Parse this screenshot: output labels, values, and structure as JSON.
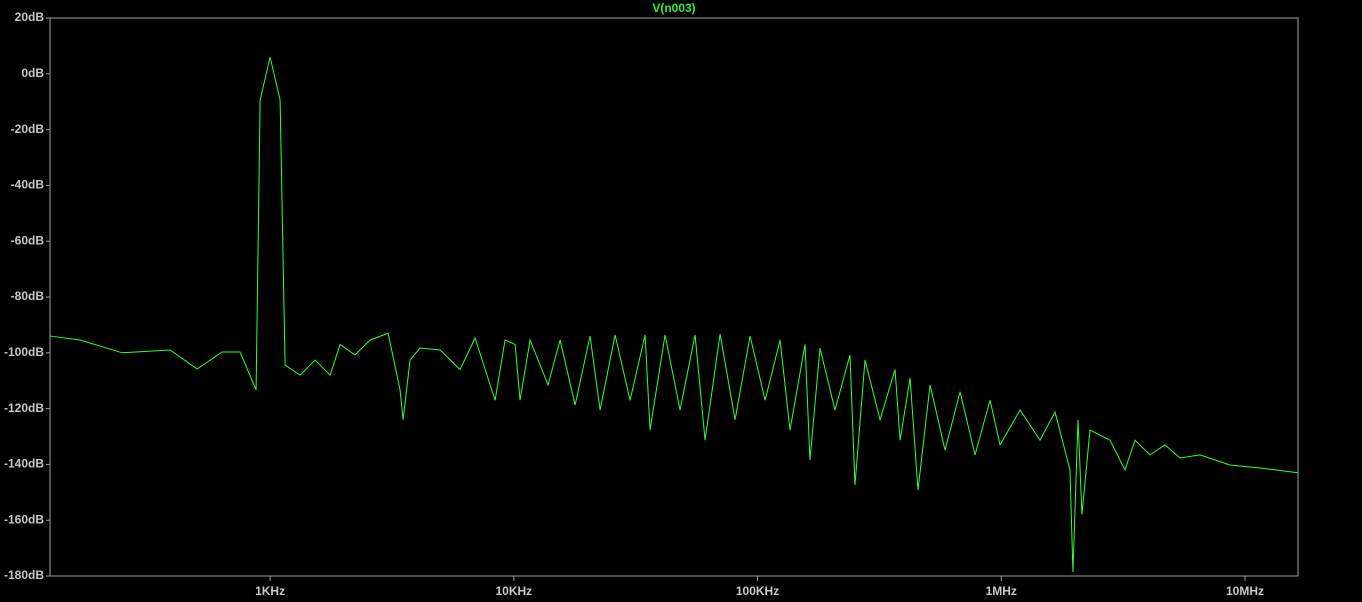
{
  "chart_data": {
    "type": "line",
    "title": "V(n003)",
    "title_color": "#33ee33",
    "log_x": true,
    "grid": false,
    "xlim": [
      125,
      16500000
    ],
    "xticks": [
      {
        "value": 1000,
        "label": "1KHz"
      },
      {
        "value": 10000,
        "label": "10KHz"
      },
      {
        "value": 100000,
        "label": "100KHz"
      },
      {
        "value": 1000000,
        "label": "1MHz"
      },
      {
        "value": 10000000,
        "label": "10MHz"
      }
    ],
    "ylim": [
      -180,
      20
    ],
    "yticks": [
      {
        "value": 20,
        "label": "20dB"
      },
      {
        "value": 0,
        "label": "0dB"
      },
      {
        "value": -20,
        "label": "-20dB"
      },
      {
        "value": -40,
        "label": "-40dB"
      },
      {
        "value": -60,
        "label": "-60dB"
      },
      {
        "value": -80,
        "label": "-80dB"
      },
      {
        "value": -100,
        "label": "-100dB"
      },
      {
        "value": -120,
        "label": "-120dB"
      },
      {
        "value": -140,
        "label": "-140dB"
      },
      {
        "value": -160,
        "label": "-160dB"
      },
      {
        "value": -180,
        "label": "-180dB"
      }
    ],
    "x": [
      125,
      166,
      247,
      389,
      502,
      635,
      753,
      876,
      910,
      1000,
      1099,
      1152,
      1328,
      1530,
      1763,
      1937,
      2232,
      2572,
      3049,
      3414,
      3513,
      3751,
      4122,
      4981,
      6019,
      6934,
      8377,
      9208,
      10120,
      10606,
      11660,
      13820,
      15480,
      17840,
      20550,
      22590,
      26030,
      29990,
      34560,
      36220,
      41740,
      48090,
      55410,
      60910,
      70190,
      80870,
      93180,
      107400,
      123700,
      135900,
      156600,
      164100,
      180400,
      207800,
      239500,
      251000,
      276000,
      318100,
      366500,
      384500,
      422500,
      455300,
      510300,
      587900,
      677400,
      780500,
      899300,
      988700,
      1194000,
      1442000,
      1662000,
      1914000,
      1968000,
      2065000,
      2143000,
      2312000,
      2793000,
      3219000,
      3537000,
      4076000,
      4698000,
      5411000,
      6536000,
      8671000,
      11530000,
      16500000
    ],
    "series": [
      {
        "name": "V(n003)",
        "color": "#33ff33",
        "values": [
          -94,
          -95.4,
          -100,
          -99,
          -105.8,
          -99.7,
          -99.7,
          -113.3,
          -9.4,
          6,
          -9.4,
          -104.4,
          -108,
          -102.6,
          -108,
          -97,
          -100.8,
          -95.4,
          -93,
          -113.3,
          -124,
          -102.6,
          -98.3,
          -99,
          -106,
          -94.7,
          -117,
          -95.4,
          -97,
          -117,
          -95.4,
          -111.5,
          -95.4,
          -118.7,
          -94,
          -120.5,
          -93.6,
          -117,
          -93.6,
          -127.7,
          -93.6,
          -120.5,
          -93.6,
          -131.3,
          -93.3,
          -124,
          -94,
          -117,
          -95.4,
          -127.7,
          -97,
          -138.4,
          -98.3,
          -120.5,
          -100.8,
          -147.4,
          -102.6,
          -124,
          -106,
          -131.3,
          -109,
          -149.2,
          -111.5,
          -134.9,
          -114,
          -136.6,
          -117,
          -133,
          -120.5,
          -131.3,
          -121.2,
          -142,
          -178.6,
          -124,
          -158,
          -127.7,
          -131.3,
          -142,
          -131.3,
          -136.6,
          -133,
          -137.7,
          -136.6,
          -140.2,
          -141.3,
          -143
        ]
      }
    ]
  }
}
